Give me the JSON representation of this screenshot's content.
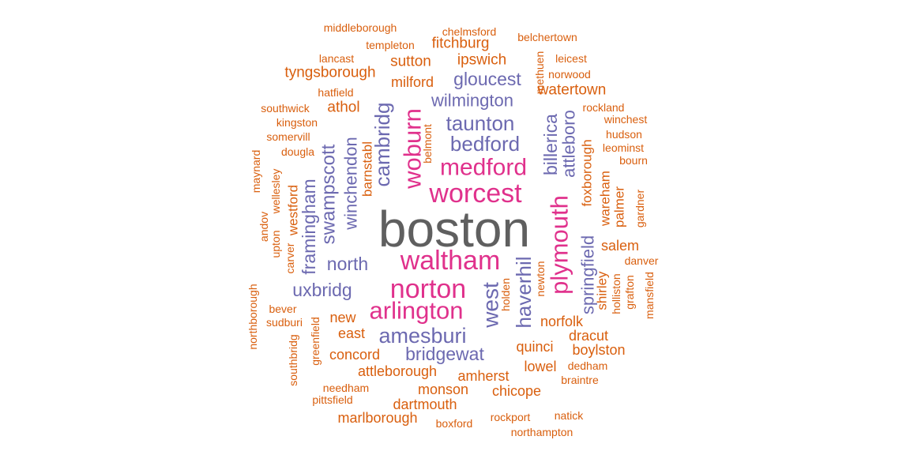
{
  "chart_data": {
    "type": "wordcloud",
    "title": "",
    "colors": {
      "largest": "#5f5f5f",
      "large": "#e0318c",
      "medium": "#6c69b0",
      "small": "#d95f0e"
    },
    "words": [
      {
        "text": "boston",
        "weight": 100,
        "color": "#5f5f5f"
      },
      {
        "text": "worcest",
        "weight": 52,
        "color": "#e0318c"
      },
      {
        "text": "medford",
        "weight": 48,
        "color": "#e0318c"
      },
      {
        "text": "waltham",
        "weight": 52,
        "color": "#e0318c"
      },
      {
        "text": "norton",
        "weight": 52,
        "color": "#e0318c"
      },
      {
        "text": "arlington",
        "weight": 48,
        "color": "#e0318c"
      },
      {
        "text": "woburn",
        "weight": 48,
        "color": "#e0318c"
      },
      {
        "text": "plymouth",
        "weight": 48,
        "color": "#e0318c"
      },
      {
        "text": "taunton",
        "weight": 36,
        "color": "#6c69b0"
      },
      {
        "text": "bedford",
        "weight": 36,
        "color": "#6c69b0"
      },
      {
        "text": "gloucest",
        "weight": 30,
        "color": "#6c69b0"
      },
      {
        "text": "wilmington",
        "weight": 30,
        "color": "#6c69b0"
      },
      {
        "text": "amesburi",
        "weight": 38,
        "color": "#6c69b0"
      },
      {
        "text": "bridgewat",
        "weight": 32,
        "color": "#6c69b0"
      },
      {
        "text": "north",
        "weight": 30,
        "color": "#6c69b0"
      },
      {
        "text": "uxbridg",
        "weight": 32,
        "color": "#6c69b0"
      },
      {
        "text": "cambridg",
        "weight": 36,
        "color": "#6c69b0"
      },
      {
        "text": "swampscott",
        "weight": 34,
        "color": "#6c69b0"
      },
      {
        "text": "framingham",
        "weight": 32,
        "color": "#6c69b0"
      },
      {
        "text": "winchendon",
        "weight": 30,
        "color": "#6c69b0"
      },
      {
        "text": "billerica",
        "weight": 32,
        "color": "#6c69b0"
      },
      {
        "text": "attleboro",
        "weight": 30,
        "color": "#6c69b0"
      },
      {
        "text": "haverhil",
        "weight": 36,
        "color": "#6c69b0"
      },
      {
        "text": "west",
        "weight": 38,
        "color": "#6c69b0"
      },
      {
        "text": "springfield",
        "weight": 30,
        "color": "#6c69b0"
      },
      {
        "text": "fitchburg",
        "weight": 22,
        "color": "#d95f0e"
      },
      {
        "text": "ipswich",
        "weight": 22,
        "color": "#d95f0e"
      },
      {
        "text": "sutton",
        "weight": 22,
        "color": "#d95f0e"
      },
      {
        "text": "tyngsborough",
        "weight": 22,
        "color": "#d95f0e"
      },
      {
        "text": "milford",
        "weight": 22,
        "color": "#d95f0e"
      },
      {
        "text": "watertown",
        "weight": 22,
        "color": "#d95f0e"
      },
      {
        "text": "athol",
        "weight": 22,
        "color": "#d95f0e"
      },
      {
        "text": "salem",
        "weight": 22,
        "color": "#d95f0e"
      },
      {
        "text": "norfolk",
        "weight": 20,
        "color": "#d95f0e"
      },
      {
        "text": "dracut",
        "weight": 20,
        "color": "#d95f0e"
      },
      {
        "text": "boylston",
        "weight": 20,
        "color": "#d95f0e"
      },
      {
        "text": "quinci",
        "weight": 20,
        "color": "#d95f0e"
      },
      {
        "text": "lowel",
        "weight": 20,
        "color": "#d95f0e"
      },
      {
        "text": "concord",
        "weight": 20,
        "color": "#d95f0e"
      },
      {
        "text": "attleborough",
        "weight": 20,
        "color": "#d95f0e"
      },
      {
        "text": "amherst",
        "weight": 20,
        "color": "#d95f0e"
      },
      {
        "text": "monson",
        "weight": 20,
        "color": "#d95f0e"
      },
      {
        "text": "chicope",
        "weight": 20,
        "color": "#d95f0e"
      },
      {
        "text": "dartmouth",
        "weight": 20,
        "color": "#d95f0e"
      },
      {
        "text": "marlborough",
        "weight": 20,
        "color": "#d95f0e"
      },
      {
        "text": "new",
        "weight": 20,
        "color": "#d95f0e"
      },
      {
        "text": "east",
        "weight": 20,
        "color": "#d95f0e"
      },
      {
        "text": "foxborough",
        "weight": 18,
        "color": "#d95f0e"
      },
      {
        "text": "wareham",
        "weight": 18,
        "color": "#d95f0e"
      },
      {
        "text": "palmer",
        "weight": 18,
        "color": "#d95f0e"
      },
      {
        "text": "shirley",
        "weight": 18,
        "color": "#d95f0e"
      },
      {
        "text": "barnstabl",
        "weight": 18,
        "color": "#d95f0e"
      },
      {
        "text": "westford",
        "weight": 18,
        "color": "#d95f0e"
      },
      {
        "text": "middleborough",
        "weight": 14,
        "color": "#d95f0e"
      },
      {
        "text": "chelmsford",
        "weight": 14,
        "color": "#d95f0e"
      },
      {
        "text": "templeton",
        "weight": 14,
        "color": "#d95f0e"
      },
      {
        "text": "belchertown",
        "weight": 14,
        "color": "#d95f0e"
      },
      {
        "text": "lancast",
        "weight": 14,
        "color": "#d95f0e"
      },
      {
        "text": "leicest",
        "weight": 14,
        "color": "#d95f0e"
      },
      {
        "text": "norwood",
        "weight": 14,
        "color": "#d95f0e"
      },
      {
        "text": "methuen",
        "weight": 14,
        "color": "#d95f0e"
      },
      {
        "text": "hatfield",
        "weight": 14,
        "color": "#d95f0e"
      },
      {
        "text": "southwick",
        "weight": 14,
        "color": "#d95f0e"
      },
      {
        "text": "kingston",
        "weight": 14,
        "color": "#d95f0e"
      },
      {
        "text": "somervill",
        "weight": 14,
        "color": "#d95f0e"
      },
      {
        "text": "dougla",
        "weight": 14,
        "color": "#d95f0e"
      },
      {
        "text": "rockland",
        "weight": 14,
        "color": "#d95f0e"
      },
      {
        "text": "winchest",
        "weight": 14,
        "color": "#d95f0e"
      },
      {
        "text": "hudson",
        "weight": 14,
        "color": "#d95f0e"
      },
      {
        "text": "leominst",
        "weight": 14,
        "color": "#d95f0e"
      },
      {
        "text": "bourn",
        "weight": 14,
        "color": "#d95f0e"
      },
      {
        "text": "belmont",
        "weight": 14,
        "color": "#d95f0e"
      },
      {
        "text": "maynard",
        "weight": 14,
        "color": "#d95f0e"
      },
      {
        "text": "wellesley",
        "weight": 14,
        "color": "#d95f0e"
      },
      {
        "text": "andov",
        "weight": 14,
        "color": "#d95f0e"
      },
      {
        "text": "upton",
        "weight": 14,
        "color": "#d95f0e"
      },
      {
        "text": "carver",
        "weight": 14,
        "color": "#d95f0e"
      },
      {
        "text": "gardner",
        "weight": 14,
        "color": "#d95f0e"
      },
      {
        "text": "danver",
        "weight": 14,
        "color": "#d95f0e"
      },
      {
        "text": "newton",
        "weight": 14,
        "color": "#d95f0e"
      },
      {
        "text": "holden",
        "weight": 14,
        "color": "#d95f0e"
      },
      {
        "text": "holliston",
        "weight": 14,
        "color": "#d95f0e"
      },
      {
        "text": "grafton",
        "weight": 14,
        "color": "#d95f0e"
      },
      {
        "text": "mansfield",
        "weight": 14,
        "color": "#d95f0e"
      },
      {
        "text": "northborough",
        "weight": 14,
        "color": "#d95f0e"
      },
      {
        "text": "bever",
        "weight": 14,
        "color": "#d95f0e"
      },
      {
        "text": "sudburi",
        "weight": 14,
        "color": "#d95f0e"
      },
      {
        "text": "greenfield",
        "weight": 14,
        "color": "#d95f0e"
      },
      {
        "text": "southbridg",
        "weight": 14,
        "color": "#d95f0e"
      },
      {
        "text": "needham",
        "weight": 14,
        "color": "#d95f0e"
      },
      {
        "text": "pittsfield",
        "weight": 14,
        "color": "#d95f0e"
      },
      {
        "text": "dedham",
        "weight": 14,
        "color": "#d95f0e"
      },
      {
        "text": "braintre",
        "weight": 14,
        "color": "#d95f0e"
      },
      {
        "text": "boxford",
        "weight": 14,
        "color": "#d95f0e"
      },
      {
        "text": "rockport",
        "weight": 14,
        "color": "#d95f0e"
      },
      {
        "text": "natick",
        "weight": 14,
        "color": "#d95f0e"
      },
      {
        "text": "northampton",
        "weight": 14,
        "color": "#d95f0e"
      }
    ]
  }
}
